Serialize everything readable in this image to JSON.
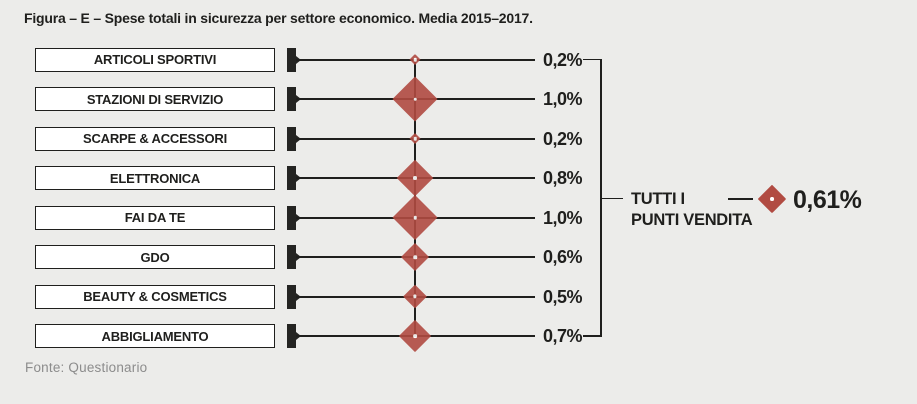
{
  "title": "Figura – E – Spese totali in sicurezza per settore economico. Media 2015–2017.",
  "source": "Fonte: Questionario",
  "colors": {
    "background": "#ECECEA",
    "diamond": "#B14B42",
    "line": "#1F1F1D",
    "box_background": "#FFFFFF",
    "text": "#1F1F1D",
    "source_text": "#8C8C8C"
  },
  "rows": [
    {
      "label": "ARTICOLI SPORTIVI",
      "value": 0.2,
      "value_label": "0,2%"
    },
    {
      "label": "STAZIONI DI SERVIZIO",
      "value": 1.0,
      "value_label": "1,0%"
    },
    {
      "label": "SCARPE & ACCESSORI",
      "value": 0.2,
      "value_label": "0,2%"
    },
    {
      "label": "ELETTRONICA",
      "value": 0.8,
      "value_label": "0,8%"
    },
    {
      "label": "FAI DA TE",
      "value": 1.0,
      "value_label": "1,0%"
    },
    {
      "label": "GDO",
      "value": 0.6,
      "value_label": "0,6%"
    },
    {
      "label": "BEAUTY & COSMETICS",
      "value": 0.5,
      "value_label": "0,5%"
    },
    {
      "label": "ABBIGLIAMENTO",
      "value": 0.7,
      "value_label": "0,7%"
    }
  ],
  "aggregate": {
    "label_line1": "TUTTI I",
    "label_line2": "PUNTI VENDITA",
    "value": 0.61,
    "value_label": "0,61%"
  },
  "chart_data": {
    "type": "scatter",
    "variant": "diamond-dot-plot",
    "title": "Figura – E – Spese totali in sicurezza per settore economico. Media 2015–2017.",
    "categories": [
      "ARTICOLI SPORTIVI",
      "STAZIONI DI SERVIZIO",
      "SCARPE & ACCESSORI",
      "ELETTRONICA",
      "FAI DA TE",
      "GDO",
      "BEAUTY & COSMETICS",
      "ABBIGLIAMENTO"
    ],
    "values": [
      0.2,
      1.0,
      0.2,
      0.8,
      1.0,
      0.6,
      0.5,
      0.7
    ],
    "value_labels": [
      "0,2%",
      "1,0%",
      "0,2%",
      "0,8%",
      "1,0%",
      "0,6%",
      "0,5%",
      "0,7%"
    ],
    "unit": "%",
    "marker": "diamond",
    "marker_color": "#B14B42",
    "marker_size_scales_with_value": true,
    "aggregate_label": "TUTTI I PUNTI VENDITA",
    "aggregate_value": 0.61,
    "aggregate_value_label": "0,61%",
    "legend_position": "right",
    "grid": false,
    "source": "Fonte: Questionario"
  }
}
